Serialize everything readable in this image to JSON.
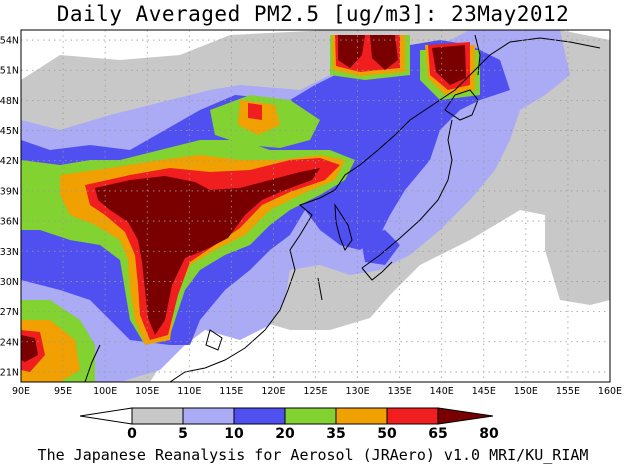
{
  "title": "Daily Averaged PM2.5 [ug/m3]: 23May2012",
  "footer": "The Japanese Reanalysis for Aerosol (JRAero) v1.0 MRI/KU_RIAM",
  "colors": {
    "level_5_10": "#c8c8c8",
    "level_10_20": "#aaaaf5",
    "level_20_35": "#5050f0",
    "level_35_50": "#82d232",
    "level_50_65": "#f0a000",
    "level_65_80": "#f01e1e",
    "level_80_plus": "#7a0000",
    "coastline": "#000000",
    "gridline": "#9a9a9a"
  },
  "map": {
    "lon_labels": [
      "90E",
      "95E",
      "100E",
      "105E",
      "110E",
      "115E",
      "120E",
      "125E",
      "130E",
      "135E",
      "140E",
      "145E",
      "150E",
      "155E",
      "160E"
    ],
    "lat_labels": [
      "21N",
      "24N",
      "27N",
      "30N",
      "33N",
      "36N",
      "39N",
      "42N",
      "45N",
      "48N",
      "51N",
      "54N"
    ],
    "lon_range": [
      90,
      160
    ],
    "lat_range": [
      20,
      55
    ]
  },
  "colorbar": {
    "labels": [
      "0",
      "5",
      "10",
      "20",
      "35",
      "50",
      "65",
      "80"
    ]
  }
}
